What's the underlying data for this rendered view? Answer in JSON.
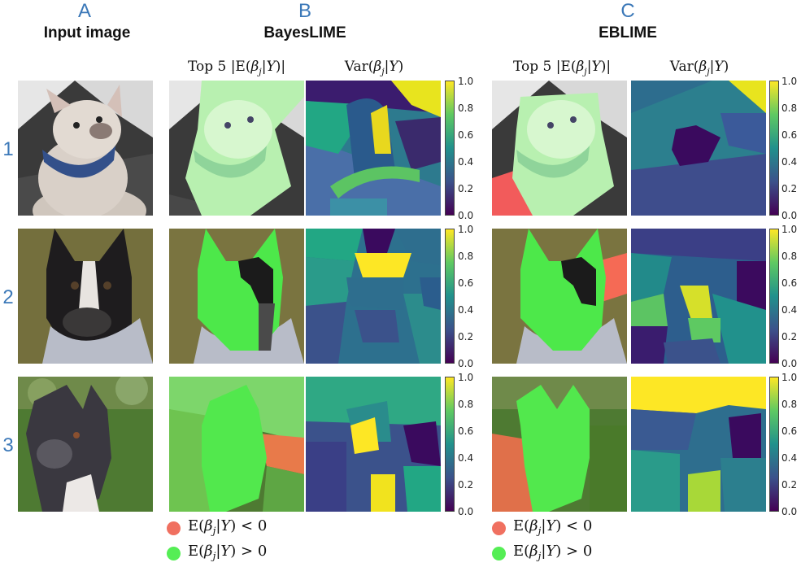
{
  "panels": {
    "A": {
      "letter": "A",
      "title": "Input image"
    },
    "B": {
      "letter": "B",
      "title": "BayesLIME",
      "col_mean": "Top 5 |E(βj|Y)|",
      "col_var": "Var(βj|Y)"
    },
    "C": {
      "letter": "C",
      "title": "EBLIME",
      "col_mean": "Top 5 |E(βj|Y)|",
      "col_var": "Var(βj|Y)"
    }
  },
  "rows": [
    "1",
    "2",
    "3"
  ],
  "colorbar": {
    "ticks": [
      "1.0",
      "0.8",
      "0.6",
      "0.4",
      "0.2",
      "0.0"
    ],
    "range": [
      0.0,
      1.0
    ]
  },
  "legend": {
    "negative": {
      "label": "E(βj|Y) < 0",
      "color": "#f07060"
    },
    "positive": {
      "label": "E(βj|Y) > 0",
      "color": "#55ee55"
    }
  },
  "colors": {
    "accent": "#3b78b8",
    "viridis_low": "#440154",
    "viridis_high": "#fde725"
  }
}
